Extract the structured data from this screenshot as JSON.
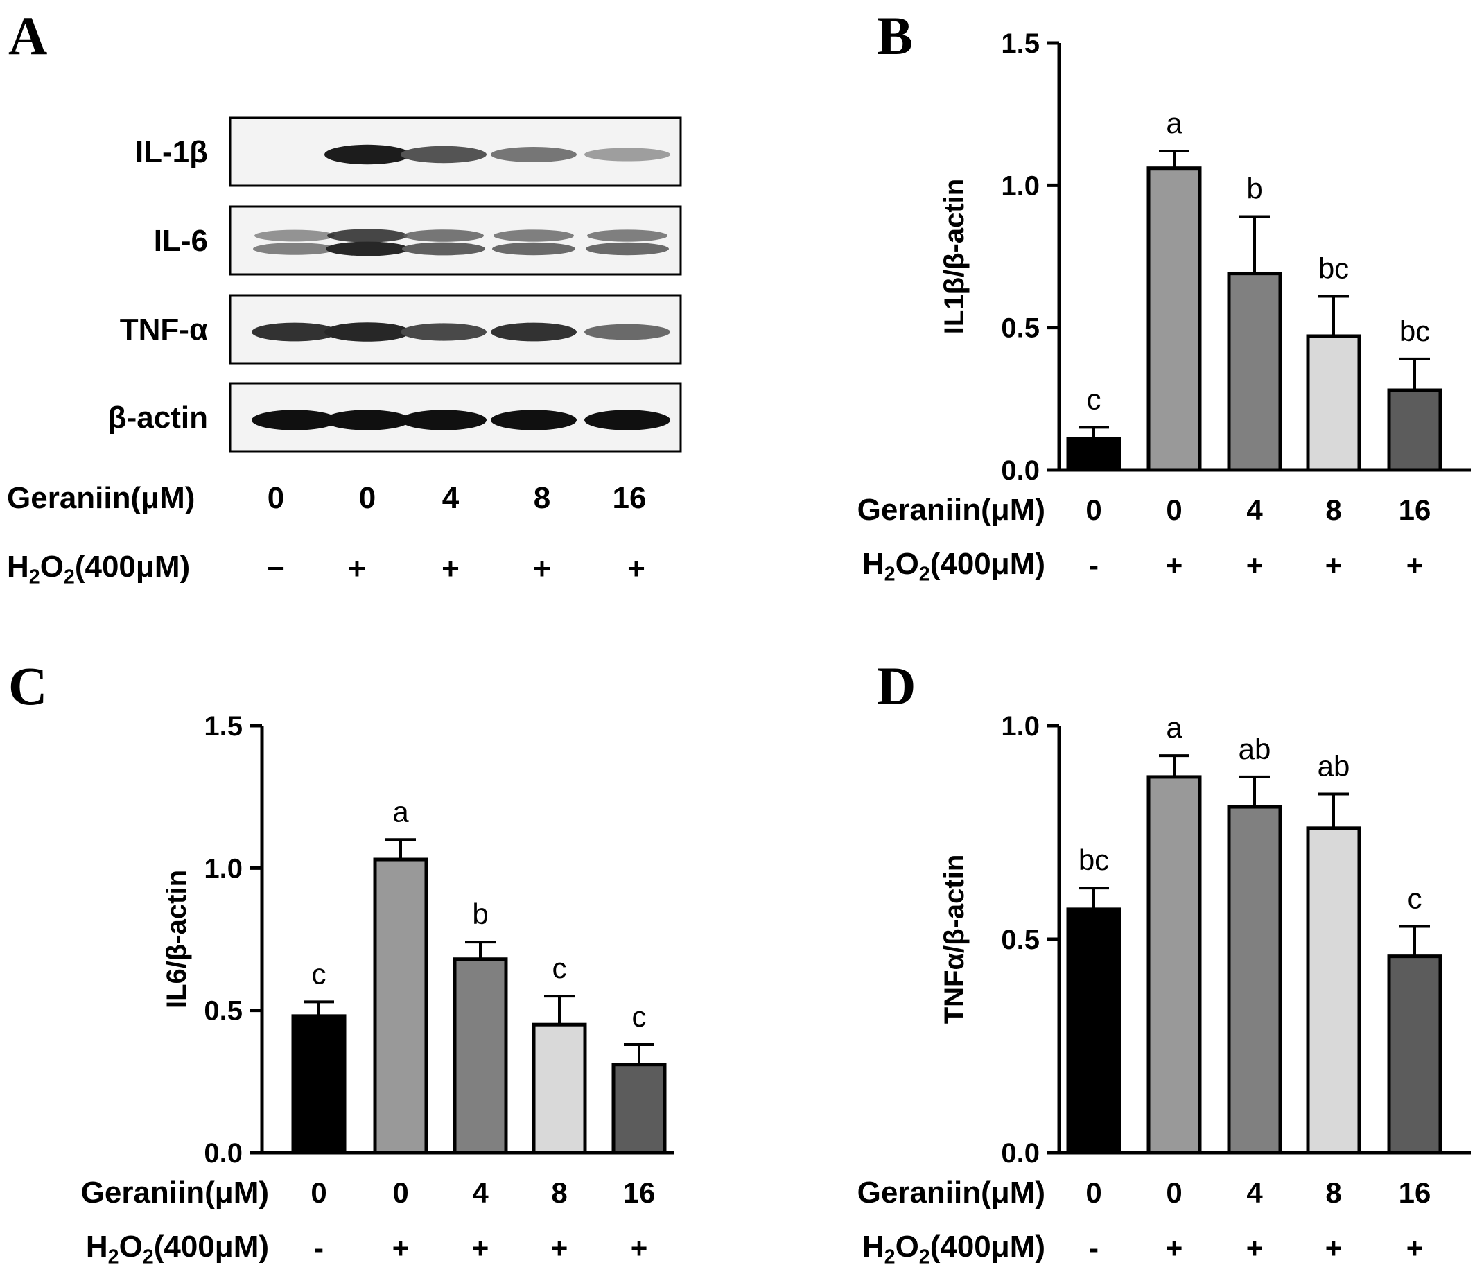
{
  "panel_labels": {
    "a": "A",
    "b": "B",
    "c": "C",
    "d": "D"
  },
  "blot": {
    "rows": [
      {
        "label": "IL-1β",
        "intensities": [
          0.0,
          0.9,
          0.65,
          0.5,
          0.32
        ],
        "double": false
      },
      {
        "label": "IL-6",
        "intensities": [
          0.45,
          0.85,
          0.6,
          0.55,
          0.55
        ],
        "double": true
      },
      {
        "label": "TNF-α",
        "intensities": [
          0.8,
          0.85,
          0.7,
          0.8,
          0.55
        ],
        "double": false
      },
      {
        "label": "β-actin",
        "intensities": [
          0.95,
          0.95,
          0.95,
          0.95,
          0.95
        ],
        "double": false
      }
    ],
    "geraniin_label": "Geraniin(μM)",
    "geraniin_values": [
      "0",
      "0",
      "4",
      "8",
      "16"
    ],
    "h2o2_label": {
      "main": "H",
      "sub1": "2",
      "mid": "O",
      "sub2": "2",
      "rest": "(400μM)"
    },
    "h2o2_values": [
      "−",
      "+",
      "+",
      "+",
      "+"
    ]
  },
  "conditions": {
    "geraniin_label": "Geraniin(μM)",
    "geraniin_values": [
      "0",
      "0",
      "4",
      "8",
      "16"
    ],
    "h2o2_label": {
      "main": "H",
      "sub1": "2",
      "mid": "O",
      "sub2": "2",
      "rest": "(400μM)"
    },
    "h2o2_values": [
      "-",
      "+",
      "+",
      "+",
      "+"
    ]
  },
  "bar_colors": [
    "#000000",
    "#999999",
    "#808080",
    "#d9d9d9",
    "#5c5c5c"
  ],
  "chart_data": [
    {
      "panel": "B",
      "type": "bar",
      "ylabel": "IL1β/β-actin",
      "ylim": [
        0,
        1.5
      ],
      "yticks": [
        "0.0",
        "0.5",
        "1.0",
        "1.5"
      ],
      "categories": [
        "0 / -",
        "0 / +",
        "4 / +",
        "8 / +",
        "16 / +"
      ],
      "values": [
        0.11,
        1.06,
        0.69,
        0.47,
        0.28
      ],
      "errors": [
        0.04,
        0.06,
        0.2,
        0.14,
        0.11
      ],
      "significance": [
        "c",
        "a",
        "b",
        "bc",
        "bc"
      ]
    },
    {
      "panel": "C",
      "type": "bar",
      "ylabel": "IL6/β-actin",
      "ylim": [
        0,
        1.5
      ],
      "yticks": [
        "0.0",
        "0.5",
        "1.0",
        "1.5"
      ],
      "categories": [
        "0 / -",
        "0 / +",
        "4 / +",
        "8 / +",
        "16 / +"
      ],
      "values": [
        0.48,
        1.03,
        0.68,
        0.45,
        0.31
      ],
      "errors": [
        0.05,
        0.07,
        0.06,
        0.1,
        0.07
      ],
      "significance": [
        "c",
        "a",
        "b",
        "c",
        "c"
      ]
    },
    {
      "panel": "D",
      "type": "bar",
      "ylabel": "TNFα/β-actin",
      "ylim": [
        0,
        1.0
      ],
      "yticks": [
        "0.0",
        "0.5",
        "1.0"
      ],
      "categories": [
        "0 / -",
        "0 / +",
        "4 / +",
        "8 / +",
        "16 / +"
      ],
      "values": [
        0.57,
        0.88,
        0.81,
        0.76,
        0.46
      ],
      "errors": [
        0.05,
        0.05,
        0.07,
        0.08,
        0.07
      ],
      "significance": [
        "bc",
        "a",
        "ab",
        "ab",
        "c"
      ]
    }
  ]
}
